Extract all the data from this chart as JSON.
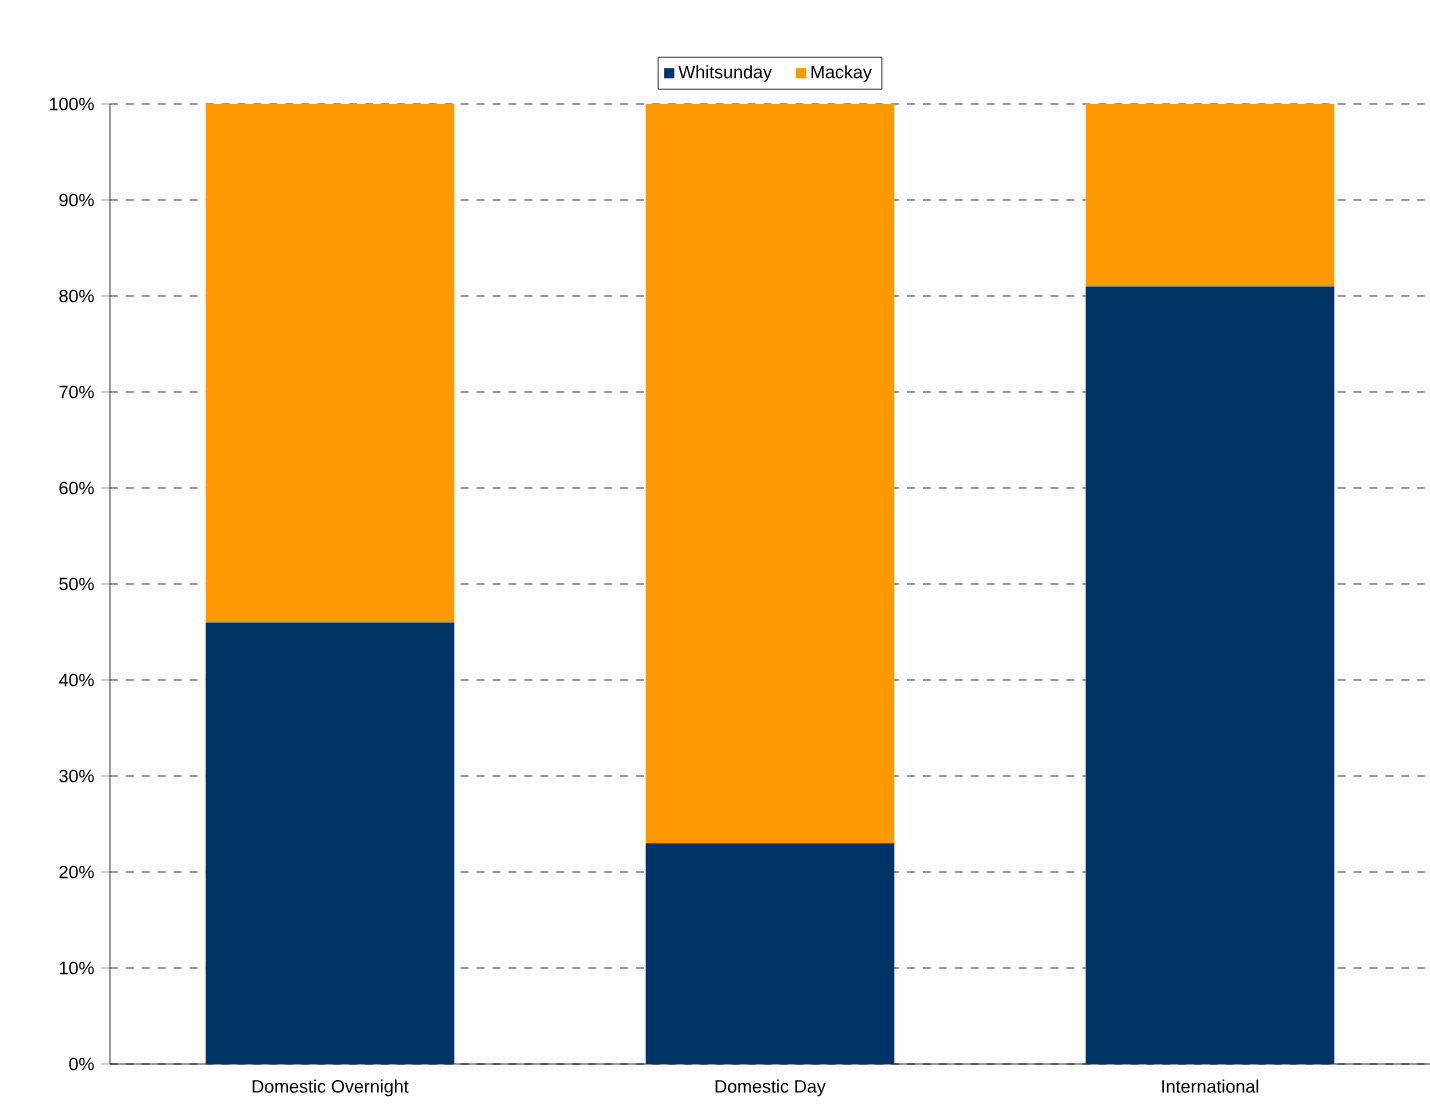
{
  "chart_data": {
    "type": "bar",
    "stacked": true,
    "categories": [
      "Domestic Overnight",
      "Domestic Day",
      "International"
    ],
    "series": [
      {
        "name": "Whitsunday",
        "color": "#003366",
        "values": [
          46,
          23,
          81
        ]
      },
      {
        "name": "Mackay",
        "color": "#ff9900",
        "values": [
          54,
          77,
          19
        ]
      }
    ],
    "ylim": [
      0,
      100
    ],
    "yticks": [
      {
        "value": 0,
        "label": "0%"
      },
      {
        "value": 10,
        "label": "10%"
      },
      {
        "value": 20,
        "label": "20%"
      },
      {
        "value": 30,
        "label": "30%"
      },
      {
        "value": 40,
        "label": "40%"
      },
      {
        "value": 50,
        "label": "50%"
      },
      {
        "value": 60,
        "label": "60%"
      },
      {
        "value": 70,
        "label": "70%"
      },
      {
        "value": 80,
        "label": "80%"
      },
      {
        "value": 90,
        "label": "90%"
      },
      {
        "value": 100,
        "label": "100%"
      }
    ],
    "grid": "y",
    "legend": "top"
  }
}
